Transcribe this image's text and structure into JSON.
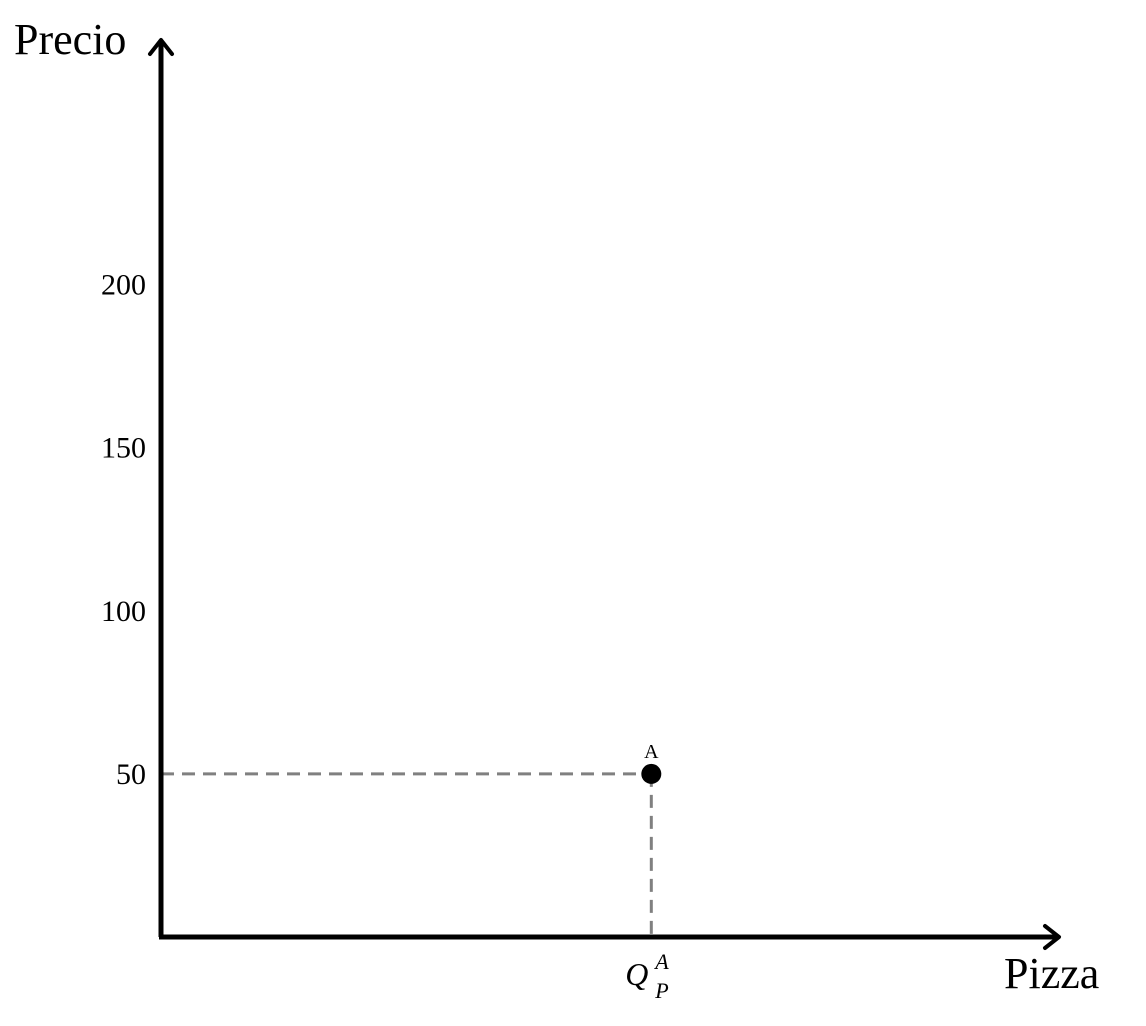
{
  "chart_data": {
    "type": "scatter",
    "title": "",
    "ylabel": "Precio",
    "xlabel": "Pizza",
    "ylim": [
      0,
      275
    ],
    "xlim": [
      0,
      1
    ],
    "grid": false,
    "y_ticks": [
      {
        "value": 50,
        "label": "50"
      },
      {
        "value": 100,
        "label": "100"
      },
      {
        "value": 150,
        "label": "150"
      },
      {
        "value": 200,
        "label": "200"
      }
    ],
    "points": [
      {
        "label": "A",
        "x": 0.546,
        "y": 50,
        "x_tick": {
          "main": "Q",
          "superscript": "A",
          "subscript": "P"
        }
      }
    ],
    "colors": {
      "axis": "#000000",
      "guide": "#808080",
      "point": "#000000"
    }
  }
}
